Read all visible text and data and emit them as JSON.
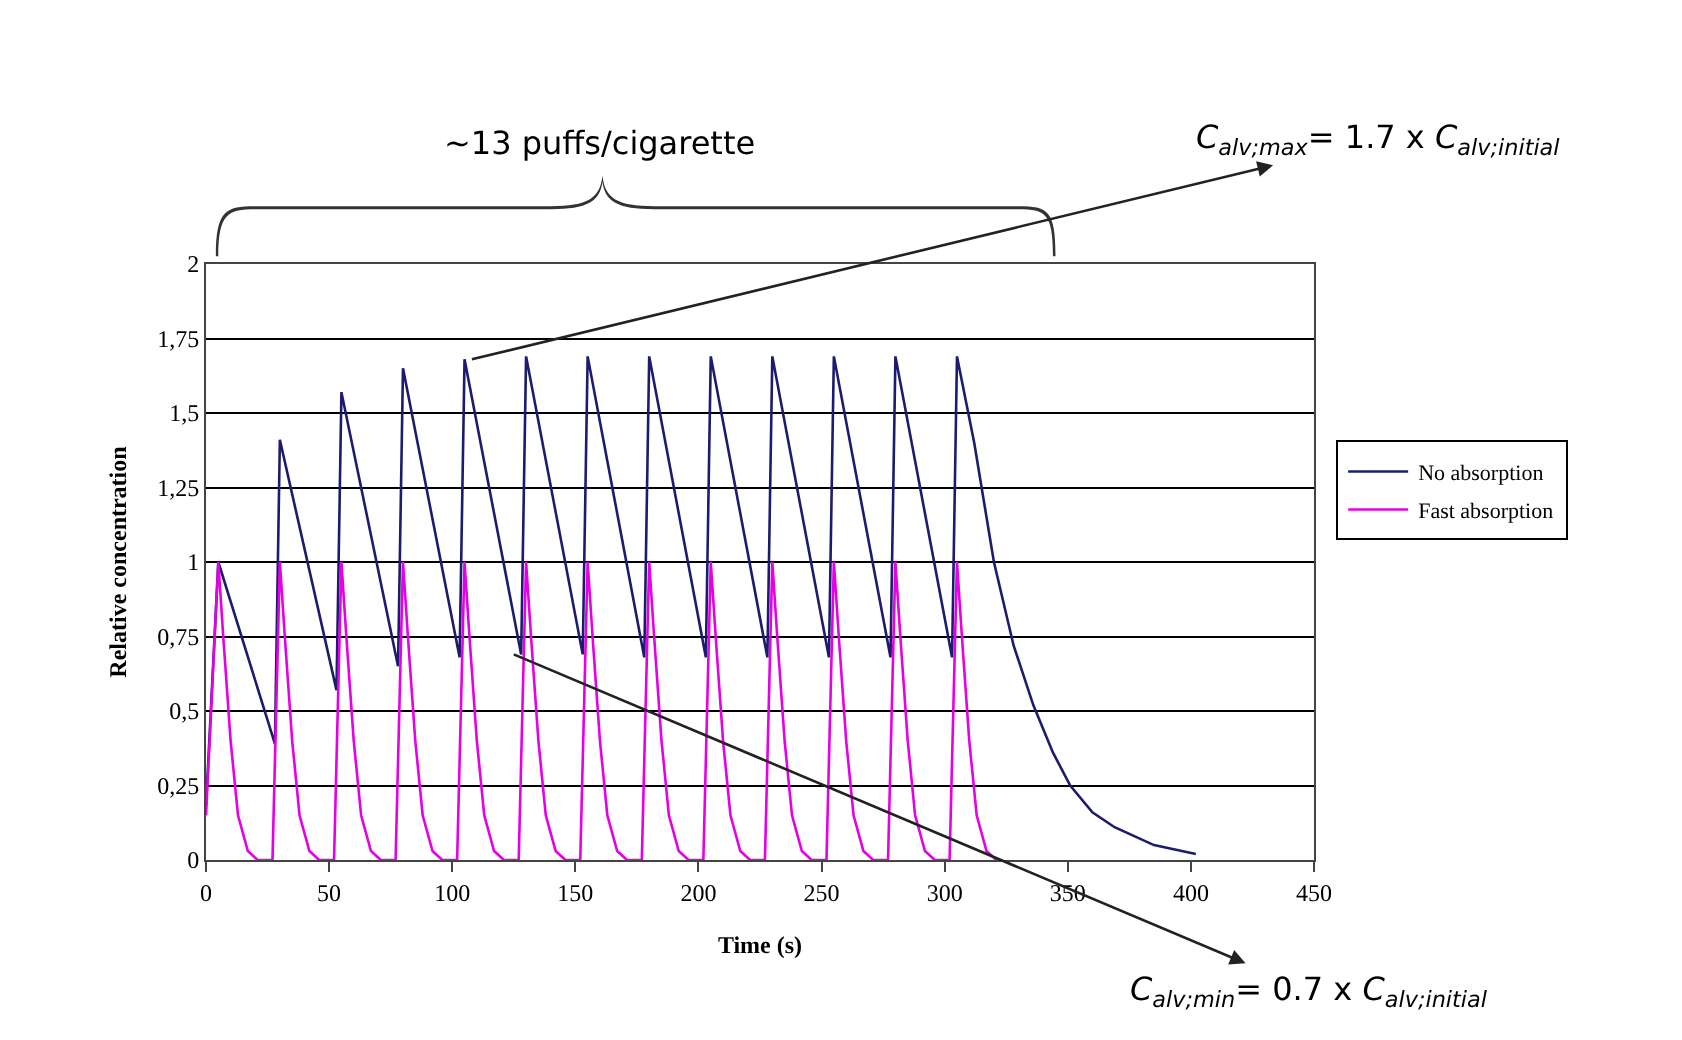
{
  "chart_data": {
    "type": "line",
    "xlabel": "Time (s)",
    "ylabel": "Relative concentration",
    "xlim": [
      0,
      450
    ],
    "xticks": [
      0,
      50,
      100,
      150,
      200,
      250,
      300,
      350,
      400,
      450
    ],
    "ylim": [
      0,
      2
    ],
    "yticks": [
      0,
      {
        "value": 0.25,
        "label": "0,25"
      },
      {
        "value": 0.5,
        "label": "0,5"
      },
      {
        "value": 0.75,
        "label": "0,75"
      },
      1,
      {
        "value": 1.25,
        "label": "1,25"
      },
      {
        "value": 1.5,
        "label": "1,5"
      },
      {
        "value": 1.75,
        "label": "1,75"
      },
      2
    ],
    "grid": "y",
    "legend": "right",
    "marker": "none",
    "line_style": "solid",
    "series": [
      {
        "name": "No absorption",
        "color": "#1c1c6e",
        "x": [
          0,
          5,
          28,
          30,
          53,
          55,
          78,
          80,
          103,
          105,
          128,
          130,
          153,
          155,
          178,
          180,
          203,
          205,
          228,
          230,
          253,
          255,
          278,
          280,
          303,
          305,
          312,
          320,
          328,
          336,
          344,
          351,
          360,
          369,
          385,
          402
        ],
        "values": [
          0.18,
          1.0,
          0.39,
          1.41,
          0.57,
          1.57,
          0.65,
          1.65,
          0.68,
          1.68,
          0.69,
          1.69,
          0.69,
          1.69,
          0.68,
          1.69,
          0.68,
          1.69,
          0.68,
          1.69,
          0.68,
          1.69,
          0.68,
          1.69,
          0.68,
          1.69,
          1.4,
          1.0,
          0.72,
          0.52,
          0.36,
          0.25,
          0.16,
          0.11,
          0.05,
          0.02
        ]
      },
      {
        "name": "Fast absorption",
        "color": "#e600e6",
        "x": [
          0,
          5,
          7,
          10,
          13,
          17,
          21,
          27,
          30,
          32,
          35,
          38,
          42,
          46,
          52,
          55,
          57,
          60,
          63,
          67,
          71,
          77,
          80,
          82,
          85,
          88,
          92,
          96,
          102,
          105,
          107,
          110,
          113,
          117,
          121,
          127,
          130,
          132,
          135,
          138,
          142,
          146,
          152,
          155,
          157,
          160,
          163,
          167,
          171,
          177,
          180,
          182,
          185,
          188,
          192,
          196,
          202,
          205,
          207,
          210,
          213,
          217,
          221,
          227,
          230,
          232,
          235,
          238,
          242,
          246,
          252,
          255,
          257,
          260,
          263,
          267,
          271,
          277,
          280,
          282,
          285,
          288,
          292,
          296,
          302,
          305,
          307,
          310,
          313,
          317,
          321
        ],
        "values": [
          0.15,
          1,
          0.75,
          0.4,
          0.15,
          0.03,
          0,
          0,
          1,
          0.75,
          0.4,
          0.15,
          0.03,
          0,
          0,
          1,
          0.75,
          0.4,
          0.15,
          0.03,
          0,
          0,
          1,
          0.75,
          0.4,
          0.15,
          0.03,
          0,
          0,
          1,
          0.75,
          0.4,
          0.15,
          0.03,
          0,
          0,
          1,
          0.75,
          0.4,
          0.15,
          0.03,
          0,
          0,
          1,
          0.75,
          0.4,
          0.15,
          0.03,
          0,
          0,
          1,
          0.75,
          0.4,
          0.15,
          0.03,
          0,
          0,
          1,
          0.75,
          0.4,
          0.15,
          0.03,
          0,
          0,
          1,
          0.75,
          0.4,
          0.15,
          0.03,
          0,
          0,
          1,
          0.75,
          0.4,
          0.15,
          0.03,
          0,
          0,
          1,
          0.75,
          0.4,
          0.15,
          0.03,
          0,
          0,
          1,
          0.75,
          0.4,
          0.15,
          0.03,
          0
        ]
      }
    ],
    "annotations": [
      "~13 puffs/cigarette",
      {
        "text": "C$_{alv;max}$= 1.7 x C$_{alv;initial}$",
        "x": 108,
        "y": 1.68
      },
      {
        "text": "C$_{alv;min}$= 0.7 x C$_{alv;initial}$",
        "x": 125,
        "y": 0.69
      }
    ]
  }
}
